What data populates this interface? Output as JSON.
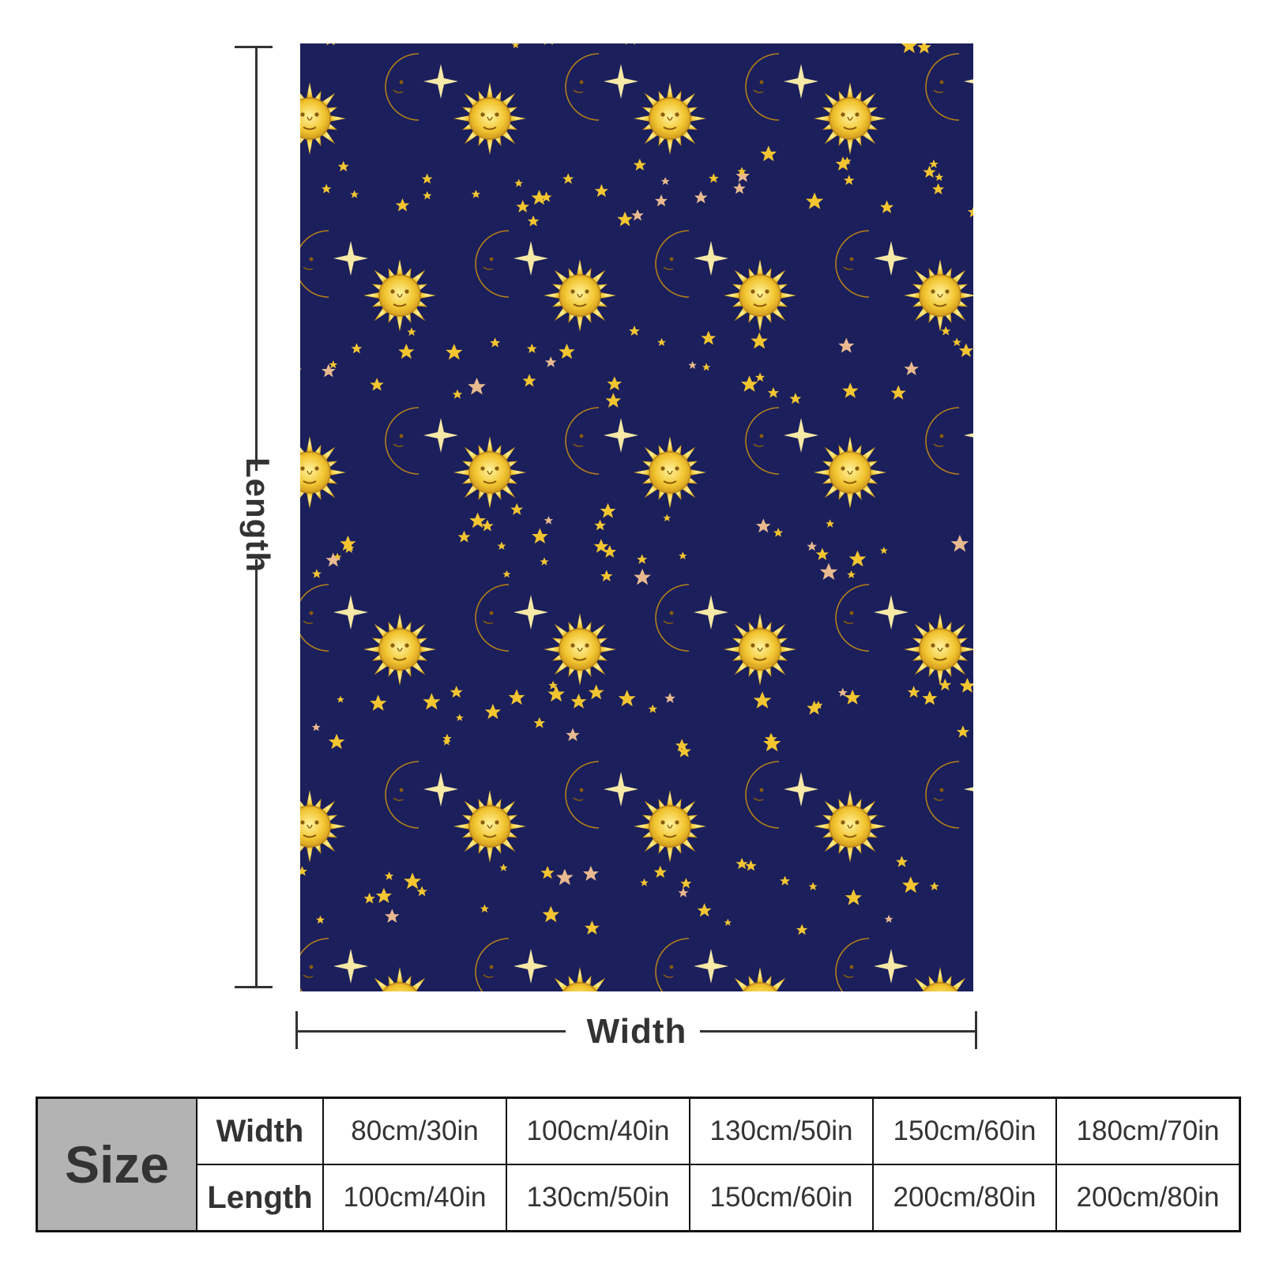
{
  "product_image": {
    "pattern": "sun-moon-stars",
    "colors": {
      "background": "#1b1f5c",
      "gold": "#f2c531",
      "gold_dark": "#c8901a",
      "peach": "#e9b98f"
    }
  },
  "dimensions": {
    "length_label": "Length",
    "width_label": "Width"
  },
  "size_table": {
    "header": "Size",
    "rows": [
      {
        "label": "Width",
        "values": [
          "80cm/30in",
          "100cm/40in",
          "130cm/50in",
          "150cm/60in",
          "180cm/70in"
        ]
      },
      {
        "label": "Length",
        "values": [
          "100cm/40in",
          "130cm/50in",
          "150cm/60in",
          "200cm/80in",
          "200cm/80in"
        ]
      }
    ]
  }
}
